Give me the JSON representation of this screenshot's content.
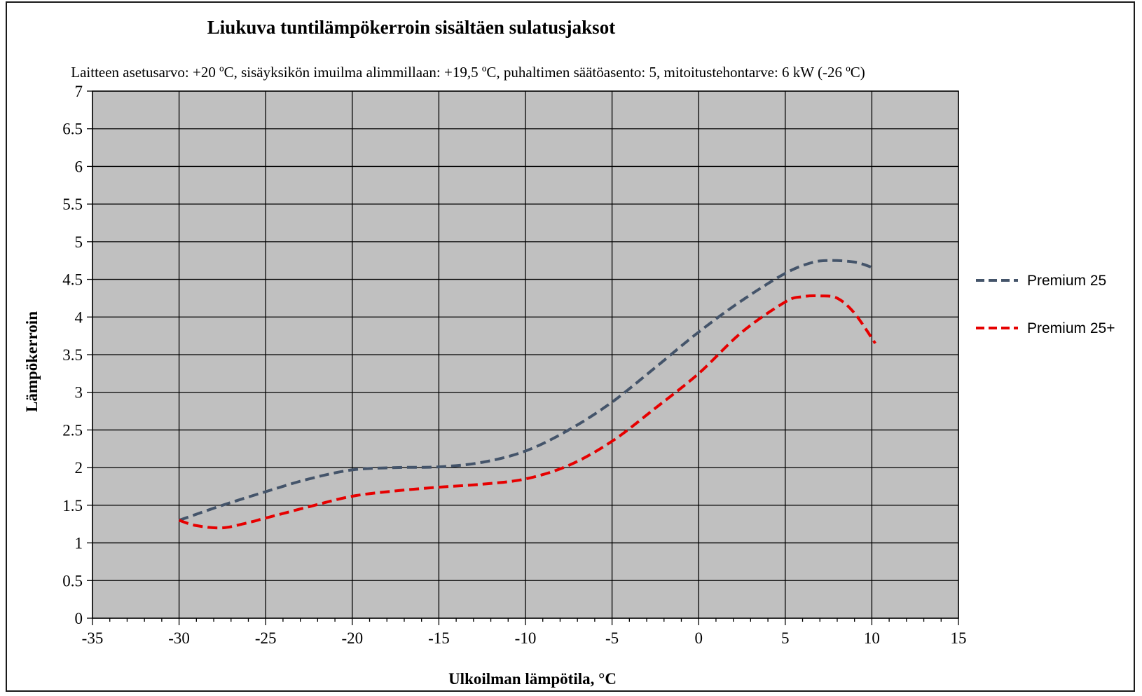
{
  "chart_data": {
    "type": "line",
    "title": "Liukuva tuntilämpökerroin sisältäen sulatusjaksot",
    "subtitle": "Laitteen asetusarvo: +20 ºC, sisäyksikön imuilma alimmillaan: +19,5 ºC, puhaltimen säätöasento: 5, mitoitustehontarve: 6 kW (-26 ºC)",
    "xlabel": "Ulkoilman lämpötila, °C",
    "ylabel": "Lämpökerroin",
    "xlim": [
      -35,
      15
    ],
    "ylim": [
      0,
      7
    ],
    "xticks": [
      -35,
      -30,
      -25,
      -20,
      -15,
      -10,
      -5,
      0,
      5,
      10,
      15
    ],
    "yticks": [
      0,
      0.5,
      1,
      1.5,
      2,
      2.5,
      3,
      3.5,
      4,
      4.5,
      5,
      5.5,
      6,
      6.5,
      7
    ],
    "xtick_labels": [
      "-35",
      "-30",
      "-25",
      "-20",
      "-15",
      "-10",
      "-5",
      "0",
      "5",
      "10",
      "15"
    ],
    "ytick_labels": [
      "0",
      "0.5",
      "1",
      "1.5",
      "2",
      "2.5",
      "3",
      "3.5",
      "4",
      "4.5",
      "5",
      "5.5",
      "6",
      "6.5",
      "7"
    ],
    "grid": true,
    "legend_position": "right",
    "plot_background": "#c0c0c0",
    "series": [
      {
        "name": "Premium 25",
        "color": "#44546a",
        "style": "dashed",
        "x": [
          -30,
          -27.5,
          -25,
          -22.5,
          -20,
          -17.5,
          -15,
          -12.5,
          -10,
          -7.5,
          -5,
          -2.5,
          0,
          2.5,
          5,
          6.5,
          7.5,
          9,
          10
        ],
        "y": [
          1.3,
          1.5,
          1.68,
          1.85,
          1.97,
          2.0,
          2.01,
          2.07,
          2.22,
          2.5,
          2.87,
          3.33,
          3.8,
          4.22,
          4.58,
          4.72,
          4.75,
          4.73,
          4.66
        ]
      },
      {
        "name": "Premium 25+",
        "color": "#e60000",
        "style": "dashed",
        "x": [
          -30,
          -29,
          -27.5,
          -26,
          -25,
          -22.5,
          -20,
          -17.5,
          -15,
          -12.5,
          -10,
          -7.5,
          -5,
          -2.5,
          0,
          2.5,
          5,
          6,
          7,
          8,
          9,
          10.2
        ],
        "y": [
          1.3,
          1.23,
          1.2,
          1.27,
          1.33,
          1.48,
          1.62,
          1.69,
          1.74,
          1.78,
          1.85,
          2.03,
          2.35,
          2.79,
          3.25,
          3.8,
          4.2,
          4.27,
          4.28,
          4.25,
          4.05,
          3.65
        ]
      }
    ]
  }
}
